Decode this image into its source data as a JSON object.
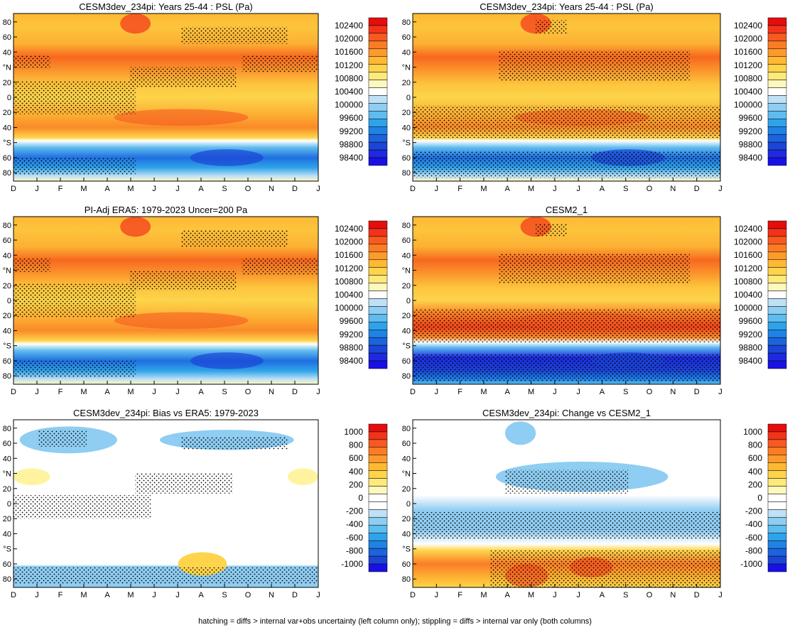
{
  "footnote": "hatching = diffs > internal var+obs uncertainty (left column only); stippling = diffs > internal var only (both columns)",
  "chart_data": [
    {
      "type": "heatmap",
      "title": "CESM3dev_234pi: Years 25-44 : PSL (Pa)",
      "variable": "PSL (Pa)",
      "months": [
        "D",
        "J",
        "F",
        "M",
        "A",
        "M",
        "J",
        "J",
        "A",
        "S",
        "O",
        "N",
        "D",
        "J"
      ],
      "lat_labels": [
        "80",
        "60",
        "40",
        "°N",
        "20",
        "0",
        "20",
        "40",
        "°S",
        "60",
        "80"
      ],
      "colorbar": [
        "102400",
        "102000",
        "101600",
        "101200",
        "100800",
        "100400",
        "100000",
        "99600",
        "99200",
        "98800",
        "98400"
      ],
      "stippling": true,
      "hatching": true
    },
    {
      "type": "heatmap",
      "title": "CESM3dev_234pi: Years 25-44 : PSL (Pa)",
      "variable": "PSL (Pa)",
      "months": [
        "D",
        "J",
        "F",
        "M",
        "A",
        "M",
        "J",
        "J",
        "A",
        "S",
        "O",
        "N",
        "D",
        "J"
      ],
      "lat_labels": [
        "80",
        "60",
        "40",
        "°N",
        "20",
        "0",
        "20",
        "40",
        "°S",
        "60",
        "80"
      ],
      "colorbar": [
        "102400",
        "102000",
        "101600",
        "101200",
        "100800",
        "100400",
        "100000",
        "99600",
        "99200",
        "98800",
        "98400"
      ],
      "stippling": true,
      "hatching": false
    },
    {
      "type": "heatmap",
      "title": "PI-Adj ERA5: 1979-2023 Uncer=200 Pa",
      "variable": "PSL (Pa)",
      "months": [
        "D",
        "J",
        "F",
        "M",
        "A",
        "M",
        "J",
        "J",
        "A",
        "S",
        "O",
        "N",
        "D",
        "J"
      ],
      "lat_labels": [
        "80",
        "60",
        "40",
        "°N",
        "20",
        "0",
        "20",
        "40",
        "°S",
        "60",
        "80"
      ],
      "colorbar": [
        "102400",
        "102000",
        "101600",
        "101200",
        "100800",
        "100400",
        "100000",
        "99600",
        "99200",
        "98800",
        "98400"
      ],
      "stippling": true,
      "hatching": true
    },
    {
      "type": "heatmap",
      "title": "CESM2_1",
      "variable": "PSL (Pa)",
      "months": [
        "D",
        "J",
        "F",
        "M",
        "A",
        "M",
        "J",
        "J",
        "A",
        "S",
        "O",
        "N",
        "D",
        "J"
      ],
      "lat_labels": [
        "80",
        "60",
        "40",
        "°N",
        "20",
        "0",
        "20",
        "40",
        "°S",
        "60",
        "80"
      ],
      "colorbar": [
        "102400",
        "102000",
        "101600",
        "101200",
        "100800",
        "100400",
        "100000",
        "99600",
        "99200",
        "98800",
        "98400"
      ],
      "stippling": true,
      "hatching": false
    },
    {
      "type": "heatmap",
      "title": "CESM3dev_234pi: Bias vs ERA5: 1979-2023",
      "variable": "PSL difference (Pa)",
      "months": [
        "D",
        "J",
        "F",
        "M",
        "A",
        "M",
        "J",
        "J",
        "A",
        "S",
        "O",
        "N",
        "D",
        "J"
      ],
      "lat_labels": [
        "80",
        "60",
        "40",
        "°N",
        "20",
        "0",
        "20",
        "40",
        "°S",
        "60",
        "80"
      ],
      "colorbar": [
        "1000",
        "800",
        "600",
        "400",
        "200",
        "0",
        "-200",
        "-400",
        "-600",
        "-800",
        "-1000"
      ],
      "stippling": true,
      "hatching": true
    },
    {
      "type": "heatmap",
      "title": "CESM3dev_234pi: Change vs CESM2_1",
      "variable": "PSL difference (Pa)",
      "months": [
        "D",
        "J",
        "F",
        "M",
        "A",
        "M",
        "J",
        "J",
        "A",
        "S",
        "O",
        "N",
        "D",
        "J"
      ],
      "lat_labels": [
        "80",
        "60",
        "40",
        "°N",
        "20",
        "0",
        "20",
        "40",
        "°S",
        "60",
        "80"
      ],
      "colorbar": [
        "1000",
        "800",
        "600",
        "400",
        "200",
        "0",
        "-200",
        "-400",
        "-600",
        "-800",
        "-1000"
      ],
      "stippling": true,
      "hatching": false
    }
  ]
}
